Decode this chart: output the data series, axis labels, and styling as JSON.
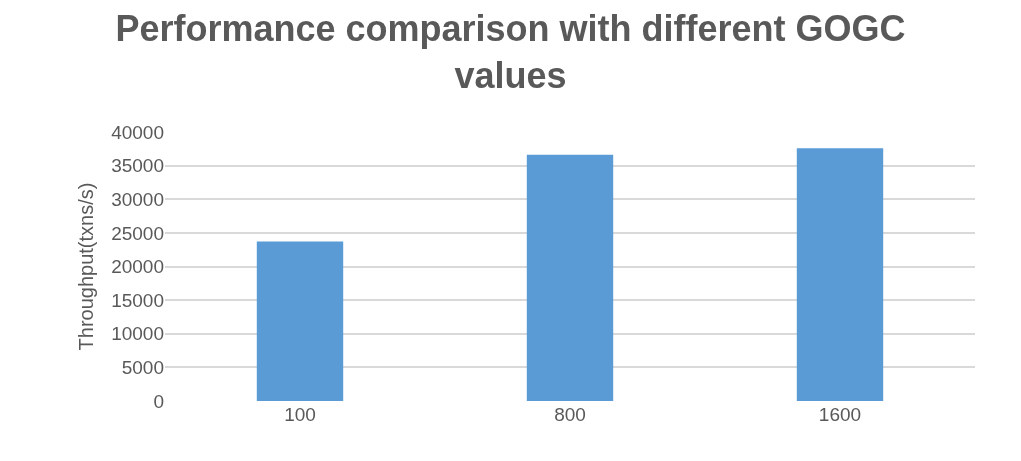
{
  "chart_data": {
    "type": "bar",
    "title": "Performance comparison with different GOGC\nvalues",
    "ylabel": "Throughput(txns/s)",
    "categories": [
      "100",
      "800",
      "1600"
    ],
    "values": [
      23700,
      36600,
      37600
    ],
    "color": "#5b9bd5",
    "ylim": [
      0,
      40000
    ],
    "yticks": [
      0,
      5000,
      10000,
      15000,
      20000,
      25000,
      30000,
      35000,
      40000
    ],
    "grid": "y",
    "legend": false
  }
}
